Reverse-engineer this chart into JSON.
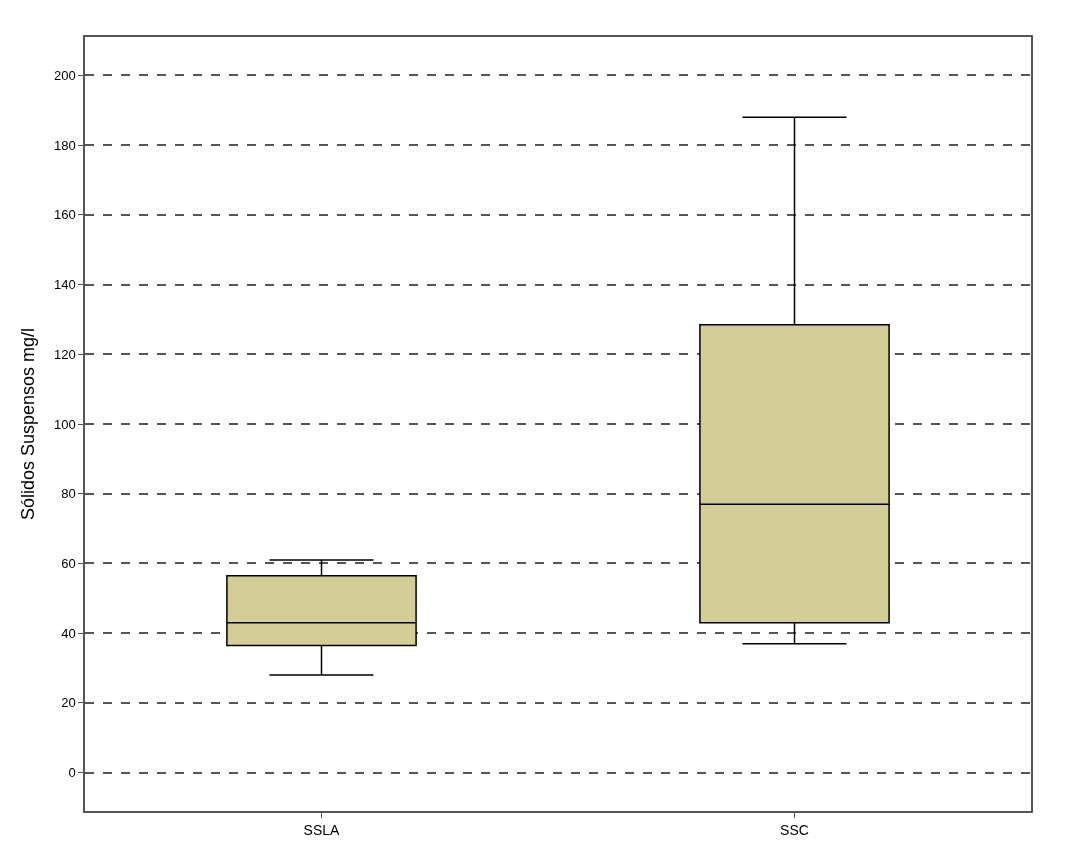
{
  "chart_data": {
    "type": "box",
    "ylabel": "Sólidos Suspensos mg/l",
    "categories": [
      "SSLA",
      "SSC"
    ],
    "boxes": [
      {
        "low": 28,
        "q1": 36.5,
        "median": 43,
        "q3": 56.5,
        "high": 61
      },
      {
        "low": 37,
        "q1": 43,
        "median": 77,
        "q3": 128.5,
        "high": 188
      }
    ],
    "color": "#d3cd98",
    "ylim": [
      -11,
      211
    ],
    "yticks": [
      0,
      20,
      40,
      60,
      80,
      100,
      120,
      140,
      160,
      180,
      200
    ],
    "grid": "y",
    "legend": false
  }
}
